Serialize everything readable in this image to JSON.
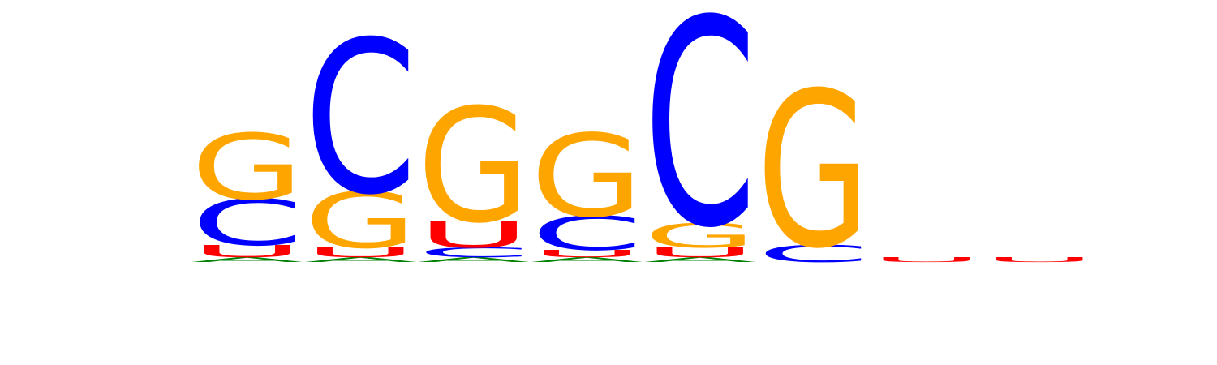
{
  "logo": {
    "colors": {
      "A": "#008000",
      "C": "#0000ff",
      "G": "#ffa500",
      "U": "#ff0000"
    },
    "ymax_bits": 2.0,
    "columns": [
      {
        "position": 1,
        "stack": [
          {
            "base": "A",
            "bits": 0.02
          },
          {
            "base": "U",
            "bits": 0.05
          },
          {
            "base": "C",
            "bits": 0.19
          },
          {
            "base": "G",
            "bits": 0.27
          }
        ]
      },
      {
        "position": 2,
        "stack": [
          {
            "base": "A",
            "bits": 0.02
          },
          {
            "base": "U",
            "bits": 0.04
          },
          {
            "base": "G",
            "bits": 0.23
          },
          {
            "base": "C",
            "bits": 0.63
          }
        ]
      },
      {
        "position": 3,
        "stack": [
          {
            "base": "A",
            "bits": 0.02
          },
          {
            "base": "C",
            "bits": 0.04
          },
          {
            "base": "U",
            "bits": 0.11
          },
          {
            "base": "G",
            "bits": 0.47
          }
        ]
      },
      {
        "position": 4,
        "stack": [
          {
            "base": "A",
            "bits": 0.02
          },
          {
            "base": "U",
            "bits": 0.03
          },
          {
            "base": "C",
            "bits": 0.14
          },
          {
            "base": "G",
            "bits": 0.34
          }
        ]
      },
      {
        "position": 5,
        "stack": [
          {
            "base": "A",
            "bits": 0.02
          },
          {
            "base": "U",
            "bits": 0.04
          },
          {
            "base": "G",
            "bits": 0.1
          },
          {
            "base": "C",
            "bits": 0.85
          }
        ]
      },
      {
        "position": 6,
        "stack": [
          {
            "base": "C",
            "bits": 0.07
          },
          {
            "base": "G",
            "bits": 0.64
          }
        ]
      },
      {
        "position": 7,
        "stack": [
          {
            "base": "U",
            "bits": 0.02
          }
        ]
      },
      {
        "position": 8,
        "stack": [
          {
            "base": "U",
            "bits": 0.02
          }
        ]
      }
    ]
  }
}
